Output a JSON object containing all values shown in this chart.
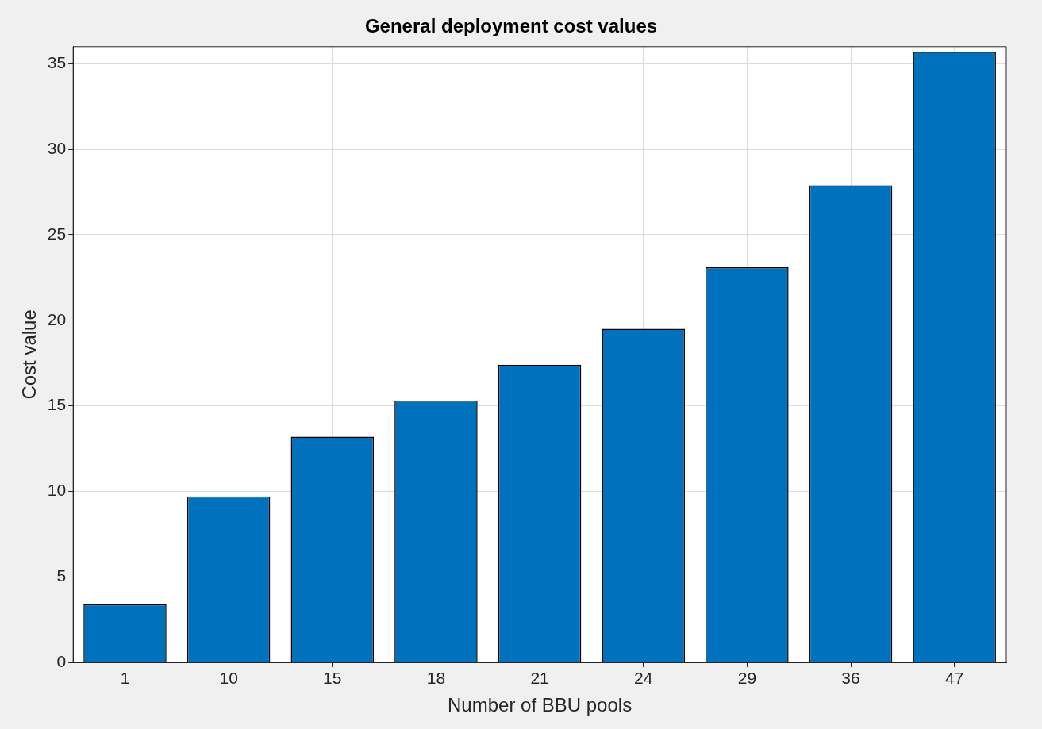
{
  "chart_data": {
    "type": "bar",
    "title": "General deployment cost values",
    "xlabel": "Number of BBU pools",
    "ylabel": "Cost value",
    "categories": [
      "1",
      "10",
      "15",
      "18",
      "21",
      "24",
      "29",
      "36",
      "47"
    ],
    "values": [
      3.4,
      9.7,
      13.2,
      15.3,
      17.4,
      19.5,
      23.1,
      27.9,
      35.7
    ],
    "color": "#0072bd",
    "ylim": [
      0,
      36
    ],
    "yticks": [
      0,
      5,
      10,
      15,
      20,
      25,
      30,
      35
    ],
    "grid": true
  }
}
